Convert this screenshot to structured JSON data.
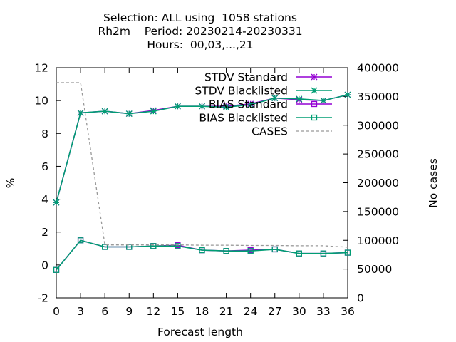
{
  "title_lines": [
    "Selection: ALL using  1058 stations",
    "Rh2m    Period: 20230214-20230331",
    "Hours:  00,03,...,21"
  ],
  "chart_data": {
    "type": "line",
    "xlabel": "Forecast length",
    "ylabel": "%",
    "y2label": "No cases",
    "x": [
      0,
      3,
      6,
      9,
      12,
      15,
      18,
      21,
      24,
      27,
      30,
      33,
      36
    ],
    "xlim": [
      0,
      36
    ],
    "ylim": [
      -2,
      12
    ],
    "y2lim": [
      0,
      400000
    ],
    "xticks": [
      "0",
      "3",
      "6",
      "9",
      "12",
      "15",
      "18",
      "21",
      "24",
      "27",
      "30",
      "33",
      "36"
    ],
    "yticks": [
      "-2",
      "0",
      "2",
      "4",
      "6",
      "8",
      "10",
      "12"
    ],
    "y2ticks": [
      "0",
      "50000",
      "100000",
      "150000",
      "200000",
      "250000",
      "300000",
      "350000",
      "400000"
    ],
    "grid": false,
    "legend_position": "top-right",
    "series": [
      {
        "name": "STDV Standard",
        "axis": "y",
        "color": "#9400d3",
        "marker": "star",
        "values": [
          3.8,
          9.25,
          9.35,
          9.2,
          9.4,
          9.65,
          9.65,
          9.65,
          9.8,
          10.15,
          10.05,
          10.0,
          10.35
        ]
      },
      {
        "name": "STDV Blacklisted",
        "axis": "y",
        "color": "#009e73",
        "marker": "star",
        "values": [
          3.8,
          9.25,
          9.35,
          9.2,
          9.35,
          9.65,
          9.65,
          9.6,
          9.75,
          10.15,
          10.1,
          10.0,
          10.35
        ]
      },
      {
        "name": "BIAS Standard",
        "axis": "y",
        "color": "#9400d3",
        "marker": "square",
        "values": [
          -0.3,
          1.5,
          1.1,
          1.1,
          1.15,
          1.2,
          0.9,
          0.85,
          0.9,
          0.95,
          0.7,
          0.7,
          0.75
        ]
      },
      {
        "name": "BIAS Blacklisted",
        "axis": "y",
        "color": "#009e73",
        "marker": "square",
        "values": [
          -0.3,
          1.5,
          1.1,
          1.1,
          1.15,
          1.15,
          0.9,
          0.85,
          0.85,
          0.95,
          0.7,
          0.7,
          0.75
        ]
      },
      {
        "name": "CASES",
        "axis": "y2",
        "color": "#999999",
        "dash": true,
        "values": [
          374000,
          374000,
          92000,
          92000,
          92000,
          92000,
          91500,
          91500,
          91000,
          91000,
          90500,
          90500,
          88000
        ]
      }
    ]
  }
}
